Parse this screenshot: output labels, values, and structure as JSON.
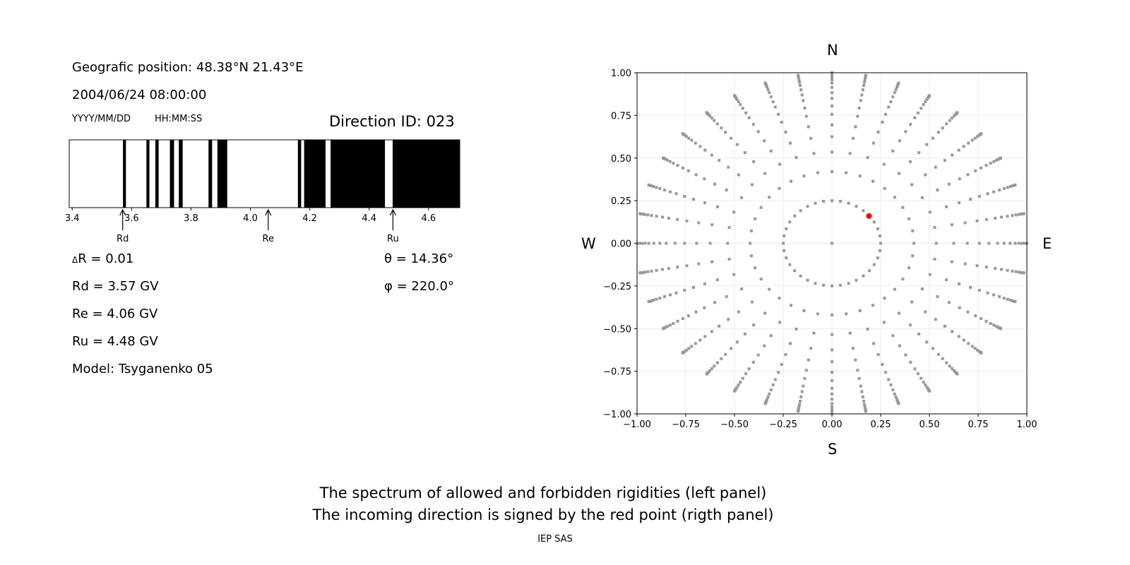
{
  "left_panel": {
    "position": "Geografic position: 48.38°N 21.43°E",
    "datetime": "2004/06/24 08:00:00",
    "date_format": "YYYY/MM/DD",
    "time_format": "HH:MM:SS",
    "direction_id": "Direction ID: 023",
    "delta_r": "R = 0.01",
    "delta_symbol": "Δ",
    "rd": "Rd = 3.57 GV",
    "re": "Re = 4.06 GV",
    "ru": "Ru = 4.48 GV",
    "model": "Model: Tsyganenko 05",
    "theta": "θ = 14.36°",
    "phi": "φ = 220.0°"
  },
  "compass": {
    "n": "N",
    "s": "S",
    "w": "W",
    "e": "E"
  },
  "caption": {
    "line1": "The spectrum of allowed and forbidden rigidities (left panel)",
    "line2": "The incoming direction is signed by the red point (rigth panel)",
    "credit": "IEP SAS"
  },
  "chart_data": [
    {
      "type": "bar",
      "xlim": [
        3.39,
        4.705
      ],
      "xticks": [
        "3.4",
        "3.6",
        "3.8",
        "4.0",
        "4.2",
        "4.4",
        "4.6"
      ],
      "forbidden_bands": [
        [
          3.571,
          3.581
        ],
        [
          3.65,
          3.66
        ],
        [
          3.68,
          3.691
        ],
        [
          3.729,
          3.743
        ],
        [
          3.759,
          3.772
        ],
        [
          3.859,
          3.871
        ],
        [
          3.889,
          3.922
        ],
        [
          4.16,
          4.171
        ],
        [
          4.181,
          4.253
        ],
        [
          4.27,
          4.453
        ],
        [
          4.479,
          4.705
        ]
      ],
      "band_color": "#000000",
      "markers": [
        {
          "label": "Rd",
          "value": 3.57
        },
        {
          "label": "Re",
          "value": 4.06
        },
        {
          "label": "Ru",
          "value": 4.48
        }
      ]
    },
    {
      "type": "scatter",
      "xlim": [
        -1,
        1
      ],
      "ylim": [
        -1,
        1
      ],
      "xticks": [
        "−1.00",
        "−0.75",
        "−0.50",
        "−0.25",
        "0.00",
        "0.25",
        "0.50",
        "0.75",
        "1.00"
      ],
      "yticks": [
        "−1.00",
        "−0.75",
        "−0.50",
        "−0.25",
        "0.00",
        "0.25",
        "0.50",
        "0.75",
        "1.00"
      ],
      "grid": true,
      "center_point": [
        0,
        0
      ],
      "inner_ring_radius": 0.25,
      "angular_step_deg": 10,
      "spoke_radii": [
        0.42,
        0.535,
        0.625,
        0.694,
        0.756,
        0.805,
        0.85,
        0.883,
        0.914,
        0.94,
        0.959,
        0.975,
        0.986,
        0.993,
        0.998,
        1.0
      ],
      "point_color": "#999999",
      "highlight": {
        "x": 0.19,
        "y": 0.16,
        "color": "#ff0000"
      }
    }
  ]
}
